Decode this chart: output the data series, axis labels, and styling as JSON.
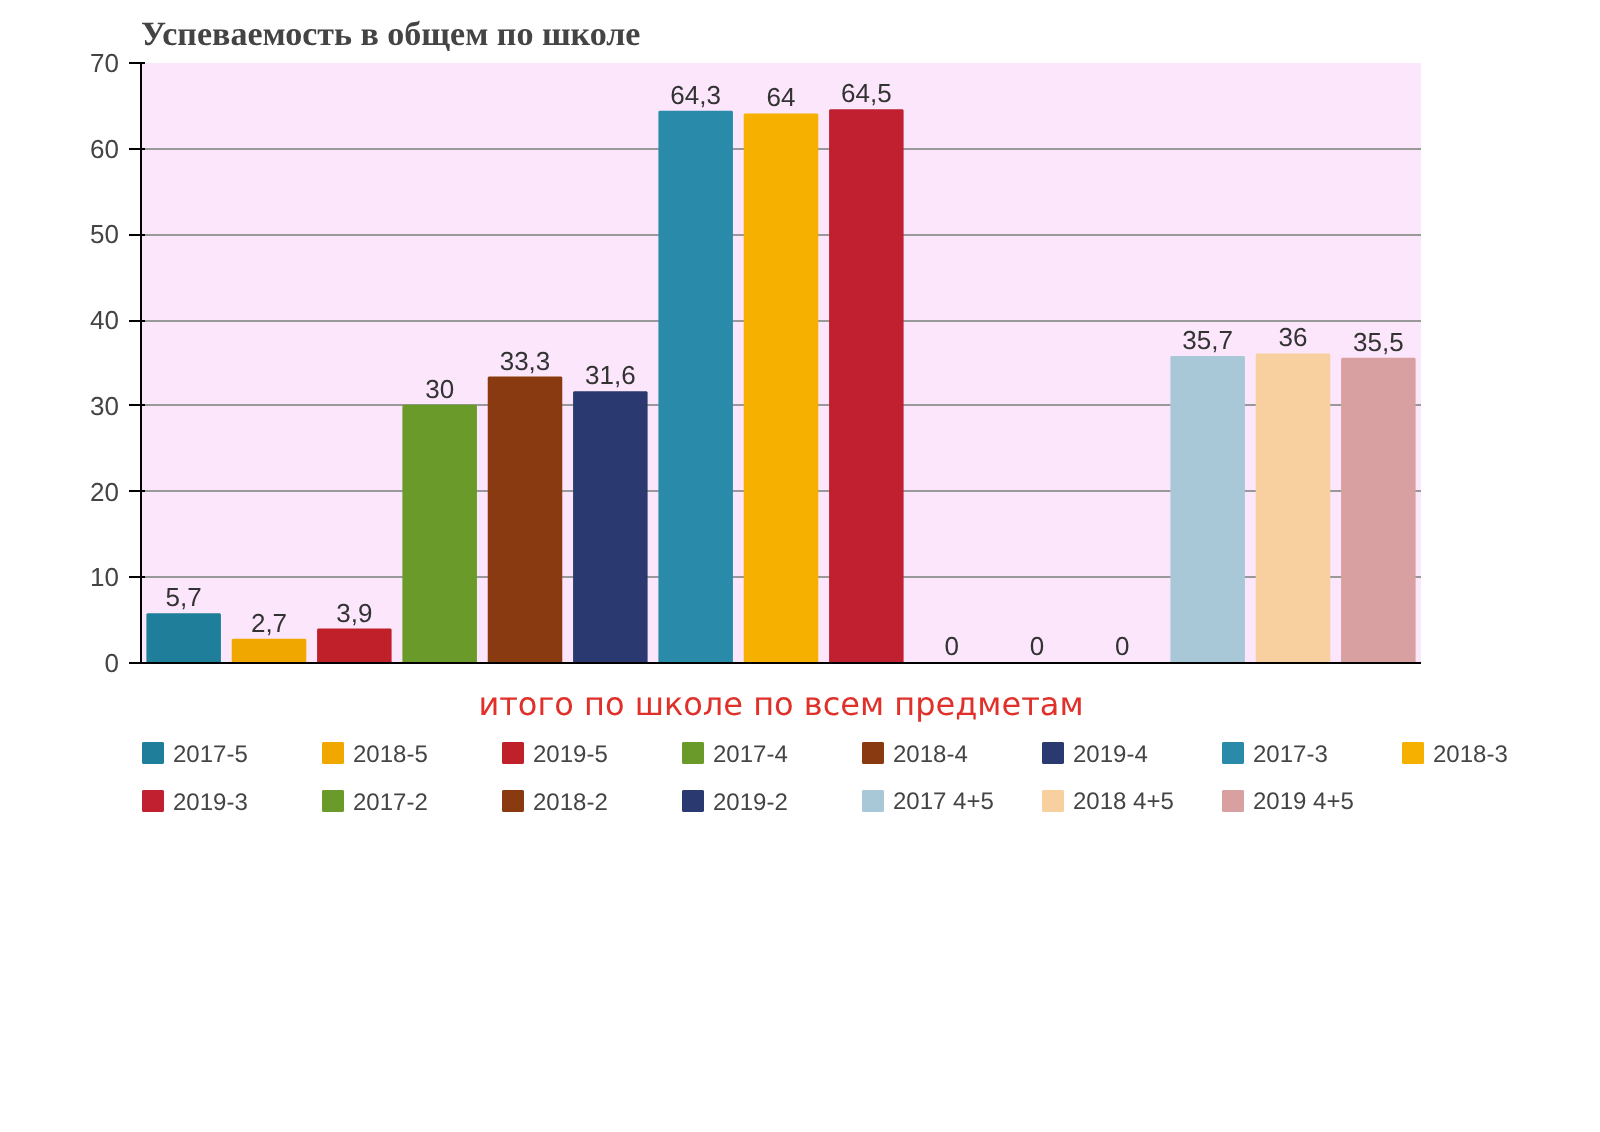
{
  "chart_data": {
    "type": "bar",
    "title": "Успеваемость в общем по школе",
    "categories": [
      "итого по школе по всем предметам"
    ],
    "series": [
      {
        "name": "2017-5",
        "color": "#1f7f9a",
        "values": [
          5.7
        ],
        "value_labels": [
          "5,7"
        ]
      },
      {
        "name": "2018-5",
        "color": "#f0a800",
        "values": [
          2.7
        ],
        "value_labels": [
          "2,7"
        ]
      },
      {
        "name": "2019-5",
        "color": "#c0202a",
        "values": [
          3.9
        ],
        "value_labels": [
          "3,9"
        ]
      },
      {
        "name": "2017-4",
        "color": "#6a9a2a",
        "values": [
          30
        ],
        "value_labels": [
          "30"
        ]
      },
      {
        "name": "2018-4",
        "color": "#8a3a10",
        "values": [
          33.3
        ],
        "value_labels": [
          "33,3"
        ]
      },
      {
        "name": "2019-4",
        "color": "#2a3a70",
        "values": [
          31.6
        ],
        "value_labels": [
          "31,6"
        ]
      },
      {
        "name": "2017-3",
        "color": "#2a8aaa",
        "values": [
          64.3
        ],
        "value_labels": [
          "64,3"
        ]
      },
      {
        "name": "2018-3",
        "color": "#f5b000",
        "values": [
          64
        ],
        "value_labels": [
          "64"
        ]
      },
      {
        "name": "2019-3",
        "color": "#c02030",
        "values": [
          64.5
        ],
        "value_labels": [
          "64,5"
        ]
      },
      {
        "name": "2017-2",
        "color": "#6a9a2a",
        "values": [
          0
        ],
        "value_labels": [
          "0"
        ]
      },
      {
        "name": "2018-2",
        "color": "#8a3a10",
        "values": [
          0
        ],
        "value_labels": [
          "0"
        ]
      },
      {
        "name": "2019-2",
        "color": "#2a3a70",
        "values": [
          0
        ],
        "value_labels": [
          "0"
        ]
      },
      {
        "name": "2017 4+5",
        "color": "#a8c8d8",
        "values": [
          35.7
        ],
        "value_labels": [
          "35,7"
        ]
      },
      {
        "name": "2018 4+5",
        "color": "#f8d0a0",
        "values": [
          36
        ],
        "value_labels": [
          "36"
        ]
      },
      {
        "name": "2019 4+5",
        "color": "#d8a0a0",
        "values": [
          35.5
        ],
        "value_labels": [
          "35,5"
        ]
      }
    ],
    "ylim": [
      0,
      70
    ],
    "yticks": [
      0,
      10,
      20,
      30,
      40,
      50,
      60,
      70
    ],
    "grid": "y",
    "legend": "bottom"
  }
}
